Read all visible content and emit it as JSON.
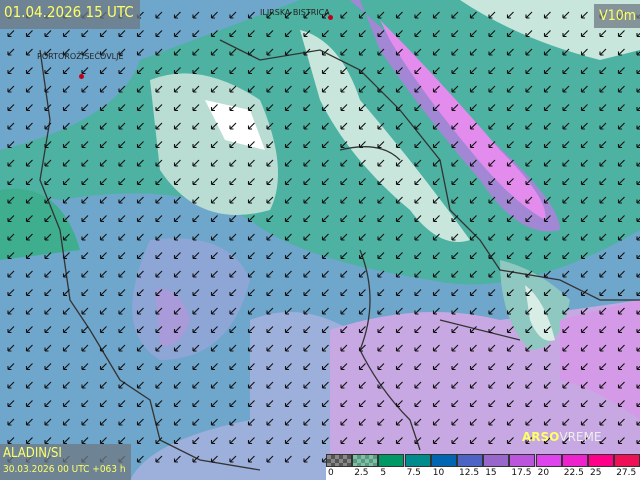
{
  "header": {
    "valid_time": "01.04.2026 15 UTC",
    "variable": "V10m"
  },
  "footer": {
    "model": "ALADIN/SI",
    "run": "30.03.2026 00 UTC +063 h",
    "logo_brand": "ARSO",
    "logo_word": "VREME"
  },
  "cities": [
    {
      "name": "ILIRSKA BISTRICA"
    },
    {
      "name": "PORTOROŽ/SEČOVLJE"
    }
  ],
  "legend": {
    "unit_variable": "V10m",
    "ticks": [
      "0",
      "2.5",
      "5",
      "7.5",
      "10",
      "12.5",
      "15",
      "17.5",
      "20",
      "22.5",
      "25",
      "27.5"
    ],
    "colors": [
      "#555555",
      "#5a9a80",
      "#009966",
      "#008c8c",
      "#0066b3",
      "#4d64c4",
      "#9966cc",
      "#bb55dd",
      "#dd44ee",
      "#ee22cc",
      "#ff0088",
      "#ee1155"
    ]
  },
  "wind_direction": "from northeast (arrows pointing southwest)"
}
